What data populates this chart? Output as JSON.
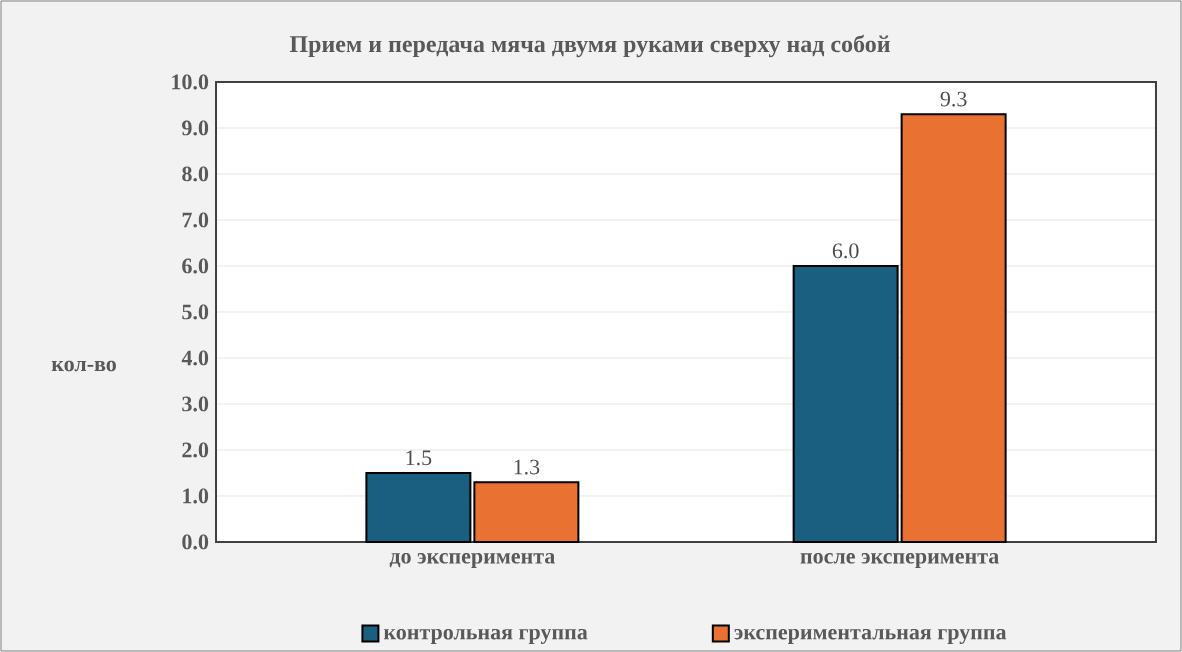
{
  "chart_data": {
    "type": "bar",
    "title": "Прием и передача мяча двумя руками сверху над собой",
    "ylabel": "кол-во",
    "categories": [
      "до эксперимента",
      "после эксперимента"
    ],
    "series": [
      {
        "name": "контрольная группа",
        "color": "#1a5f80",
        "values": [
          1.5,
          6.0
        ],
        "value_labels": [
          "1.5",
          "6.0"
        ]
      },
      {
        "name": "экспериментальная группа",
        "color": "#e97132",
        "values": [
          1.3,
          9.3
        ],
        "value_labels": [
          "1.3",
          "9.3"
        ]
      }
    ],
    "ylim": [
      0,
      10
    ],
    "yticks": [
      {
        "value": 0,
        "label": "0.0"
      },
      {
        "value": 1,
        "label": "1.0"
      },
      {
        "value": 2,
        "label": "2.0"
      },
      {
        "value": 3,
        "label": "3.0"
      },
      {
        "value": 4,
        "label": "4.0"
      },
      {
        "value": 5,
        "label": "5.0"
      },
      {
        "value": 6,
        "label": "6.0"
      },
      {
        "value": 7,
        "label": "7.0"
      },
      {
        "value": 8,
        "label": "8.0"
      },
      {
        "value": 9,
        "label": "9.0"
      },
      {
        "value": 10,
        "label": "10.0"
      }
    ],
    "grid": "y",
    "legend": "bottom"
  }
}
